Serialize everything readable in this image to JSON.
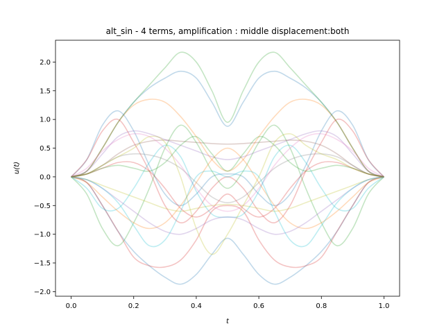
{
  "chart_data": {
    "type": "line",
    "title": "alt_sin - 4 terms, amplification : middle displacement:both",
    "xlabel": "t",
    "ylabel": "u(t)",
    "xlim": [
      -0.05,
      1.05
    ],
    "ylim": [
      -2.08,
      2.38
    ],
    "xticks": [
      0.0,
      0.2,
      0.4,
      0.6,
      0.8,
      1.0
    ],
    "xtick_labels": [
      "0.0",
      "0.2",
      "0.4",
      "0.6",
      "0.8",
      "1.0"
    ],
    "yticks": [
      -2.0,
      -1.5,
      -1.0,
      -0.5,
      0.0,
      0.5,
      1.0,
      1.5,
      2.0
    ],
    "ytick_labels": [
      "−2.0",
      "−1.5",
      "−1.0",
      "−0.5",
      "0.0",
      "0.5",
      "1.0",
      "1.5",
      "2.0"
    ],
    "grid": false,
    "legend": "none",
    "line_opacity": 0.28,
    "x_samples": [
      0.0,
      0.05,
      0.1,
      0.15,
      0.2,
      0.25,
      0.3,
      0.35,
      0.4,
      0.45,
      0.5,
      0.55,
      0.6,
      0.65,
      0.7,
      0.75,
      0.8,
      0.85,
      0.9,
      0.95,
      1.0
    ],
    "series": [
      {
        "color": "#1f77b4",
        "values": [
          0,
          0.1,
          0.5,
          0.95,
          1.3,
          1.55,
          1.72,
          1.84,
          1.72,
          1.3,
          0.88,
          1.3,
          1.72,
          1.84,
          1.72,
          1.55,
          1.3,
          0.95,
          0.5,
          0.1,
          0
        ]
      },
      {
        "color": "#2ca02c",
        "values": [
          0,
          0.1,
          0.5,
          0.95,
          1.3,
          1.6,
          1.9,
          2.17,
          2.0,
          1.5,
          0.95,
          1.5,
          2.0,
          2.17,
          1.9,
          1.6,
          1.3,
          0.95,
          0.5,
          0.1,
          0
        ]
      },
      {
        "color": "#1f77b4",
        "values": [
          0,
          -0.1,
          -0.5,
          -0.95,
          -1.3,
          -1.55,
          -1.75,
          -1.87,
          -1.7,
          -1.35,
          -1.07,
          -1.35,
          -1.7,
          -1.87,
          -1.75,
          -1.55,
          -1.3,
          -0.95,
          -0.5,
          -0.1,
          0
        ]
      },
      {
        "color": "#d62728",
        "values": [
          0,
          -0.1,
          -0.5,
          -0.95,
          -1.4,
          -1.55,
          -1.57,
          -1.45,
          -1.1,
          -0.6,
          -0.5,
          -0.6,
          -1.1,
          -1.45,
          -1.57,
          -1.55,
          -1.4,
          -0.95,
          -0.5,
          -0.1,
          0
        ]
      },
      {
        "color": "#ff7f0e",
        "values": [
          0,
          0.1,
          0.5,
          0.95,
          1.25,
          1.35,
          1.3,
          1.05,
          0.7,
          0.3,
          0.1,
          0.3,
          0.7,
          1.05,
          1.3,
          1.35,
          1.25,
          0.95,
          0.5,
          0.1,
          0
        ]
      },
      {
        "color": "#1f77b4",
        "values": [
          0,
          0.3,
          0.9,
          1.15,
          0.8,
          0.2,
          -0.3,
          -0.5,
          -0.3,
          0.0,
          0.05,
          0.0,
          -0.3,
          -0.5,
          -0.3,
          0.2,
          0.8,
          1.15,
          0.9,
          0.3,
          0
        ]
      },
      {
        "color": "#d62728",
        "values": [
          0,
          0.3,
          0.8,
          1.0,
          0.6,
          0.1,
          -0.5,
          -0.8,
          -0.6,
          -0.2,
          0.0,
          -0.2,
          -0.6,
          -0.8,
          -0.5,
          0.1,
          0.6,
          1.0,
          0.8,
          0.3,
          0
        ]
      },
      {
        "color": "#2ca02c",
        "values": [
          0,
          -0.3,
          -0.9,
          -1.2,
          -0.8,
          -0.2,
          0.5,
          0.9,
          0.6,
          0.1,
          -0.2,
          0.1,
          0.6,
          0.9,
          0.5,
          -0.2,
          -0.8,
          -1.2,
          -0.9,
          -0.3,
          0
        ]
      },
      {
        "color": "#9467bd",
        "values": [
          0,
          0.1,
          0.4,
          0.7,
          0.8,
          0.75,
          0.65,
          0.55,
          0.45,
          0.35,
          0.3,
          0.35,
          0.45,
          0.55,
          0.65,
          0.75,
          0.8,
          0.7,
          0.4,
          0.1,
          0
        ]
      },
      {
        "color": "#8c564b",
        "values": [
          0,
          0.05,
          0.2,
          0.4,
          0.55,
          0.62,
          0.64,
          0.62,
          0.6,
          0.58,
          0.57,
          0.58,
          0.6,
          0.62,
          0.64,
          0.62,
          0.55,
          0.4,
          0.2,
          0.05,
          0
        ]
      },
      {
        "color": "#7f7f7f",
        "values": [
          0,
          0.05,
          0.2,
          0.35,
          0.4,
          0.38,
          0.3,
          0.15,
          -0.1,
          -0.35,
          -0.45,
          -0.35,
          -0.1,
          0.15,
          0.3,
          0.38,
          0.4,
          0.35,
          0.2,
          0.05,
          0
        ]
      },
      {
        "color": "#bcbd22",
        "values": [
          0,
          -0.05,
          -0.15,
          -0.25,
          -0.35,
          -0.45,
          -0.55,
          -0.6,
          -0.55,
          -0.5,
          -0.48,
          -0.5,
          -0.55,
          -0.6,
          -0.55,
          -0.45,
          -0.35,
          -0.25,
          -0.15,
          -0.05,
          0
        ]
      },
      {
        "color": "#17becf",
        "values": [
          0,
          -0.2,
          -0.55,
          -0.55,
          -0.2,
          0.25,
          0.55,
          0.35,
          -0.25,
          -0.65,
          -0.7,
          -0.65,
          -0.25,
          0.35,
          0.55,
          0.25,
          -0.2,
          -0.55,
          -0.55,
          -0.2,
          0
        ]
      },
      {
        "color": "#e377c2",
        "values": [
          0,
          0.15,
          0.45,
          0.65,
          0.75,
          0.7,
          0.5,
          0.2,
          -0.2,
          -0.5,
          -0.6,
          -0.5,
          -0.2,
          0.2,
          0.5,
          0.7,
          0.75,
          0.65,
          0.45,
          0.15,
          0
        ]
      },
      {
        "color": "#ff7f0e",
        "values": [
          0,
          -0.1,
          -0.35,
          -0.6,
          -0.8,
          -0.9,
          -0.8,
          -0.5,
          -0.1,
          0.3,
          0.5,
          0.3,
          -0.1,
          -0.5,
          -0.8,
          -0.9,
          -0.8,
          -0.6,
          -0.35,
          -0.1,
          0
        ]
      },
      {
        "color": "#9467bd",
        "values": [
          0,
          -0.05,
          -0.2,
          -0.4,
          -0.6,
          -0.8,
          -0.95,
          -1.0,
          -0.9,
          -0.75,
          -0.7,
          -0.75,
          -0.9,
          -1.0,
          -0.95,
          -0.8,
          -0.6,
          -0.4,
          -0.2,
          -0.05,
          0
        ]
      },
      {
        "color": "#bcbd22",
        "values": [
          0,
          0.05,
          0.2,
          0.35,
          0.5,
          0.7,
          0.6,
          0.0,
          -0.9,
          -1.35,
          -1.0,
          -0.5,
          0.0,
          0.6,
          0.75,
          0.55,
          0.4,
          0.3,
          0.15,
          0.05,
          0
        ]
      },
      {
        "color": "#17becf",
        "values": [
          0,
          -0.05,
          -0.2,
          -0.45,
          -0.85,
          -1.2,
          -1.1,
          -0.6,
          0.0,
          0.1,
          0.0,
          0.1,
          0.0,
          -0.6,
          -1.1,
          -1.2,
          -0.85,
          -0.45,
          -0.2,
          -0.05,
          0
        ]
      },
      {
        "color": "#d62728",
        "values": [
          0,
          0.05,
          0.15,
          0.25,
          0.25,
          0.1,
          -0.2,
          -0.55,
          -0.7,
          -0.55,
          -0.3,
          -0.55,
          -0.7,
          -0.55,
          -0.2,
          0.1,
          0.25,
          0.25,
          0.15,
          0.05,
          0
        ]
      },
      {
        "color": "#2ca02c",
        "values": [
          0,
          0.05,
          0.15,
          0.2,
          0.15,
          0.1,
          0.25,
          0.55,
          0.7,
          0.4,
          0.1,
          0.4,
          0.7,
          0.55,
          0.25,
          0.1,
          0.15,
          0.2,
          0.15,
          0.05,
          0
        ]
      }
    ]
  }
}
